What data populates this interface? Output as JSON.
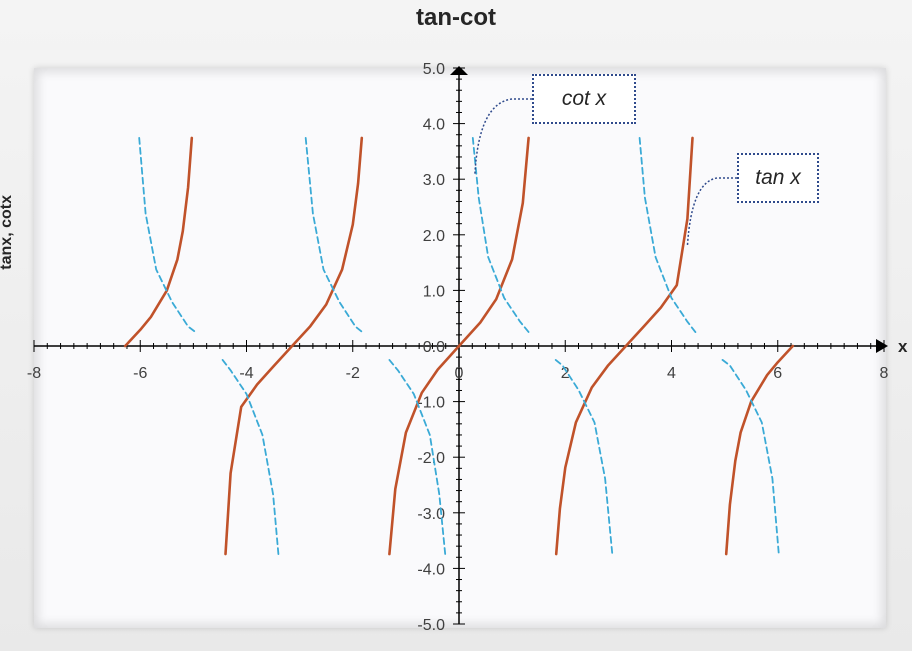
{
  "chart_data": {
    "type": "line",
    "title": "tan-cot",
    "xlabel": "x",
    "ylabel": "tanx, cotx",
    "xlim": [
      -8,
      8
    ],
    "ylim": [
      -5,
      5
    ],
    "x_ticks": [
      "-8",
      "-6",
      "-4",
      "-2",
      "0",
      "2",
      "4",
      "6",
      "8"
    ],
    "y_ticks": [
      "5.0",
      "4.0",
      "3.0",
      "2.0",
      "1.0",
      "0.0",
      "-1.0",
      "-2.0",
      "-3.0",
      "-4.0",
      "-5.0"
    ],
    "grid": false,
    "series": [
      {
        "name": "tan x",
        "color": "#c0522a",
        "style": "solid",
        "segments": [
          [
            [
              -6.283,
              0
            ],
            [
              -6.0,
              0.291
            ],
            [
              -5.8,
              0.523
            ],
            [
              -5.5,
              0.996
            ],
            [
              -5.3,
              1.557
            ],
            [
              -5.2,
              2.066
            ],
            [
              -5.1,
              2.852
            ],
            [
              -5.03,
              3.742
            ]
          ],
          [
            [
              -4.395,
              -3.742
            ],
            [
              -4.3,
              -2.287
            ],
            [
              -4.1,
              -1.096
            ],
            [
              -3.8,
              -0.693
            ],
            [
              -3.5,
              -0.375
            ],
            [
              -3.1416,
              0
            ],
            [
              -2.8,
              0.356
            ],
            [
              -2.5,
              0.747
            ],
            [
              -2.2,
              1.374
            ],
            [
              -2.0,
              2.185
            ],
            [
              -1.9,
              2.927
            ],
            [
              -1.83,
              3.742
            ]
          ],
          [
            [
              -1.31,
              -3.742
            ],
            [
              -1.2,
              -2.572
            ],
            [
              -1.0,
              -1.557
            ],
            [
              -0.7,
              -0.842
            ],
            [
              -0.4,
              -0.423
            ],
            [
              0,
              0
            ],
            [
              0.4,
              0.423
            ],
            [
              0.7,
              0.842
            ],
            [
              1.0,
              1.557
            ],
            [
              1.2,
              2.572
            ],
            [
              1.31,
              3.742
            ]
          ],
          [
            [
              1.83,
              -3.742
            ],
            [
              1.9,
              -2.927
            ],
            [
              2.0,
              -2.185
            ],
            [
              2.2,
              -1.374
            ],
            [
              2.5,
              -0.747
            ],
            [
              2.8,
              -0.356
            ],
            [
              3.1416,
              0
            ],
            [
              3.5,
              0.375
            ],
            [
              3.8,
              0.693
            ],
            [
              4.1,
              1.096
            ],
            [
              4.3,
              2.287
            ],
            [
              4.395,
              3.742
            ]
          ],
          [
            [
              5.03,
              -3.742
            ],
            [
              5.1,
              -2.852
            ],
            [
              5.2,
              -2.066
            ],
            [
              5.3,
              -1.557
            ],
            [
              5.5,
              -0.996
            ],
            [
              5.8,
              -0.523
            ],
            [
              6.0,
              -0.291
            ],
            [
              6.283,
              0
            ]
          ]
        ]
      },
      {
        "name": "cot x",
        "color": "#3aaad6",
        "style": "dashed",
        "segments": [
          [
            [
              -6.02,
              3.742
            ],
            [
              -5.9,
              2.383
            ],
            [
              -5.7,
              1.376
            ],
            [
              -5.4,
              0.789
            ],
            [
              -5.1,
              0.351
            ],
            [
              -4.96,
              0.25
            ]
          ],
          [
            [
              -4.45,
              -0.25
            ],
            [
              -4.3,
              -0.437
            ],
            [
              -4.0,
              -0.864
            ],
            [
              -3.7,
              -1.597
            ],
            [
              -3.5,
              -2.669
            ],
            [
              -3.4,
              -3.742
            ]
          ],
          [
            [
              -2.885,
              3.742
            ],
            [
              -2.75,
              2.383
            ],
            [
              -2.55,
              1.376
            ],
            [
              -2.25,
              0.789
            ],
            [
              -1.95,
              0.351
            ],
            [
              -1.82,
              0.25
            ]
          ],
          [
            [
              -1.31,
              -0.25
            ],
            [
              -1.15,
              -0.437
            ],
            [
              -0.85,
              -0.864
            ],
            [
              -0.55,
              -1.597
            ],
            [
              -0.37,
              -2.669
            ],
            [
              -0.26,
              -3.742
            ]
          ],
          [
            [
              0.26,
              3.742
            ],
            [
              0.37,
              2.669
            ],
            [
              0.55,
              1.597
            ],
            [
              0.85,
              0.864
            ],
            [
              1.15,
              0.437
            ],
            [
              1.31,
              0.25
            ]
          ],
          [
            [
              1.82,
              -0.25
            ],
            [
              1.95,
              -0.351
            ],
            [
              2.25,
              -0.789
            ],
            [
              2.55,
              -1.376
            ],
            [
              2.75,
              -2.383
            ],
            [
              2.885,
              -3.742
            ]
          ],
          [
            [
              3.4,
              3.742
            ],
            [
              3.5,
              2.669
            ],
            [
              3.7,
              1.597
            ],
            [
              4.0,
              0.864
            ],
            [
              4.3,
              0.437
            ],
            [
              4.45,
              0.25
            ]
          ],
          [
            [
              4.96,
              -0.25
            ],
            [
              5.1,
              -0.351
            ],
            [
              5.4,
              -0.789
            ],
            [
              5.7,
              -1.376
            ],
            [
              5.9,
              -2.383
            ],
            [
              6.02,
              -3.742
            ]
          ]
        ]
      }
    ],
    "annotations": [
      {
        "text": "cot x",
        "points_to": [
          0.3,
          3.1
        ]
      },
      {
        "text": "tan x",
        "points_to": [
          4.3,
          1.8
        ]
      }
    ]
  }
}
